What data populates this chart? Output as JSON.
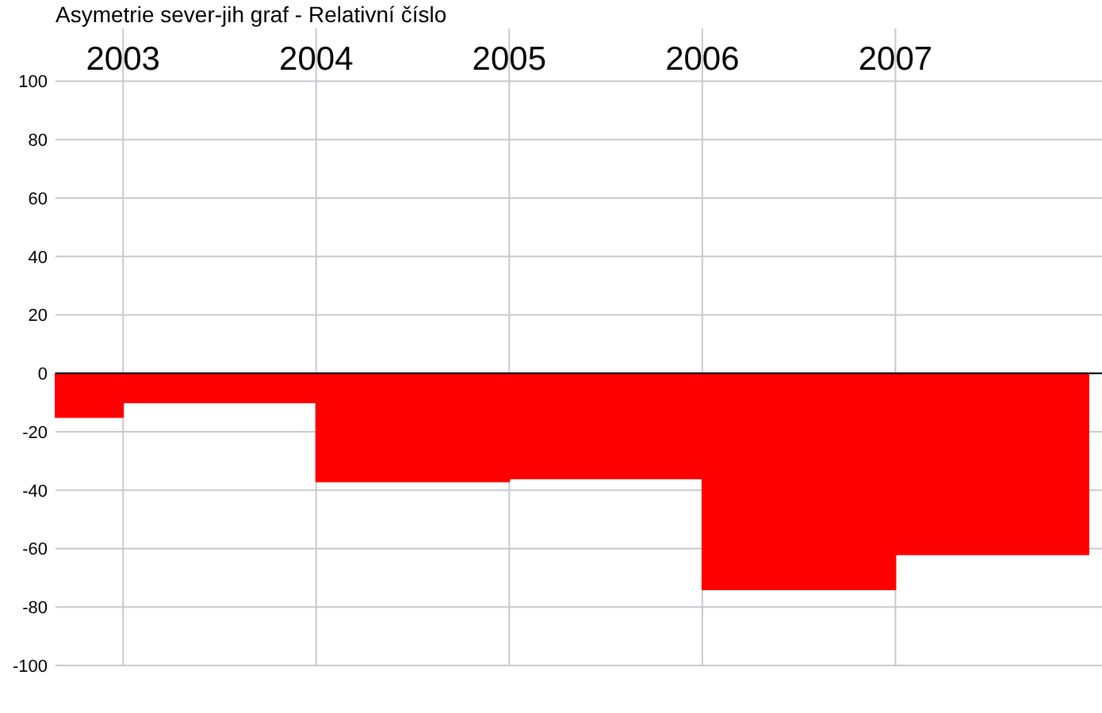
{
  "chart_data": {
    "type": "area",
    "title": "Asymetrie  sever-jih  graf  -  Relativní číslo",
    "x": [
      2002.65,
      2003,
      2003,
      2004,
      2004,
      2005,
      2005,
      2006,
      2006,
      2007,
      2007,
      2008
    ],
    "values": [
      -15,
      -15,
      -10,
      -10,
      -37,
      -37,
      -36,
      -36,
      -74,
      -74,
      -62,
      -62
    ],
    "color": "#ff0000",
    "xlim": [
      2002.65,
      2008.07
    ],
    "xticks": [
      2003,
      2004,
      2005,
      2006,
      2007
    ],
    "ylim": [
      -100,
      118
    ],
    "yticks": [
      -100,
      -80,
      -60,
      -40,
      -20,
      0,
      20,
      40,
      60,
      80,
      100
    ],
    "grid": true
  }
}
